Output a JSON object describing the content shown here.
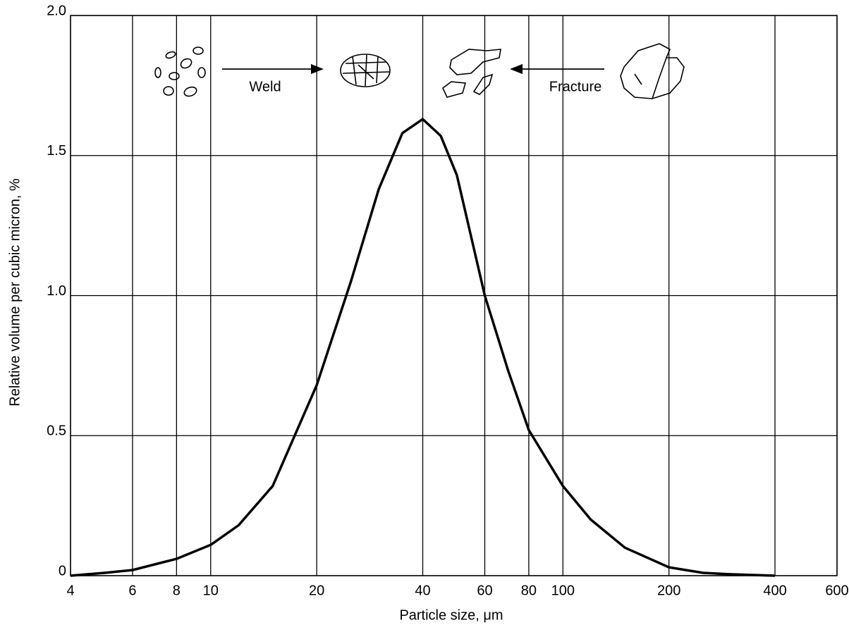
{
  "chart_data": {
    "type": "line",
    "x_label": "Particle size, μm",
    "y_label": "Relative volume per cubic micron, %",
    "annotations": [
      "Weld",
      "Fracture"
    ],
    "x": [
      4,
      5,
      6,
      8,
      10,
      12,
      15,
      20,
      25,
      30,
      35,
      40,
      45,
      50,
      60,
      70,
      80,
      100,
      120,
      150,
      200,
      250,
      300,
      400
    ],
    "values": [
      0,
      0.01,
      0.02,
      0.06,
      0.11,
      0.18,
      0.32,
      0.68,
      1.05,
      1.38,
      1.58,
      1.63,
      1.57,
      1.43,
      1.0,
      0.73,
      0.52,
      0.32,
      0.2,
      0.1,
      0.03,
      0.01,
      0.005,
      0
    ],
    "color": "#000000",
    "xlim": [
      4,
      600
    ],
    "log_x": true,
    "xticks": [
      4,
      6,
      8,
      10,
      20,
      40,
      60,
      80,
      100,
      200,
      400,
      600
    ],
    "ylim": [
      0,
      2
    ],
    "yticks": [
      0,
      0.5,
      {
        "value": 1,
        "label": "1.0"
      },
      1.5,
      {
        "value": 2,
        "label": "2.0"
      }
    ],
    "grid": true
  }
}
